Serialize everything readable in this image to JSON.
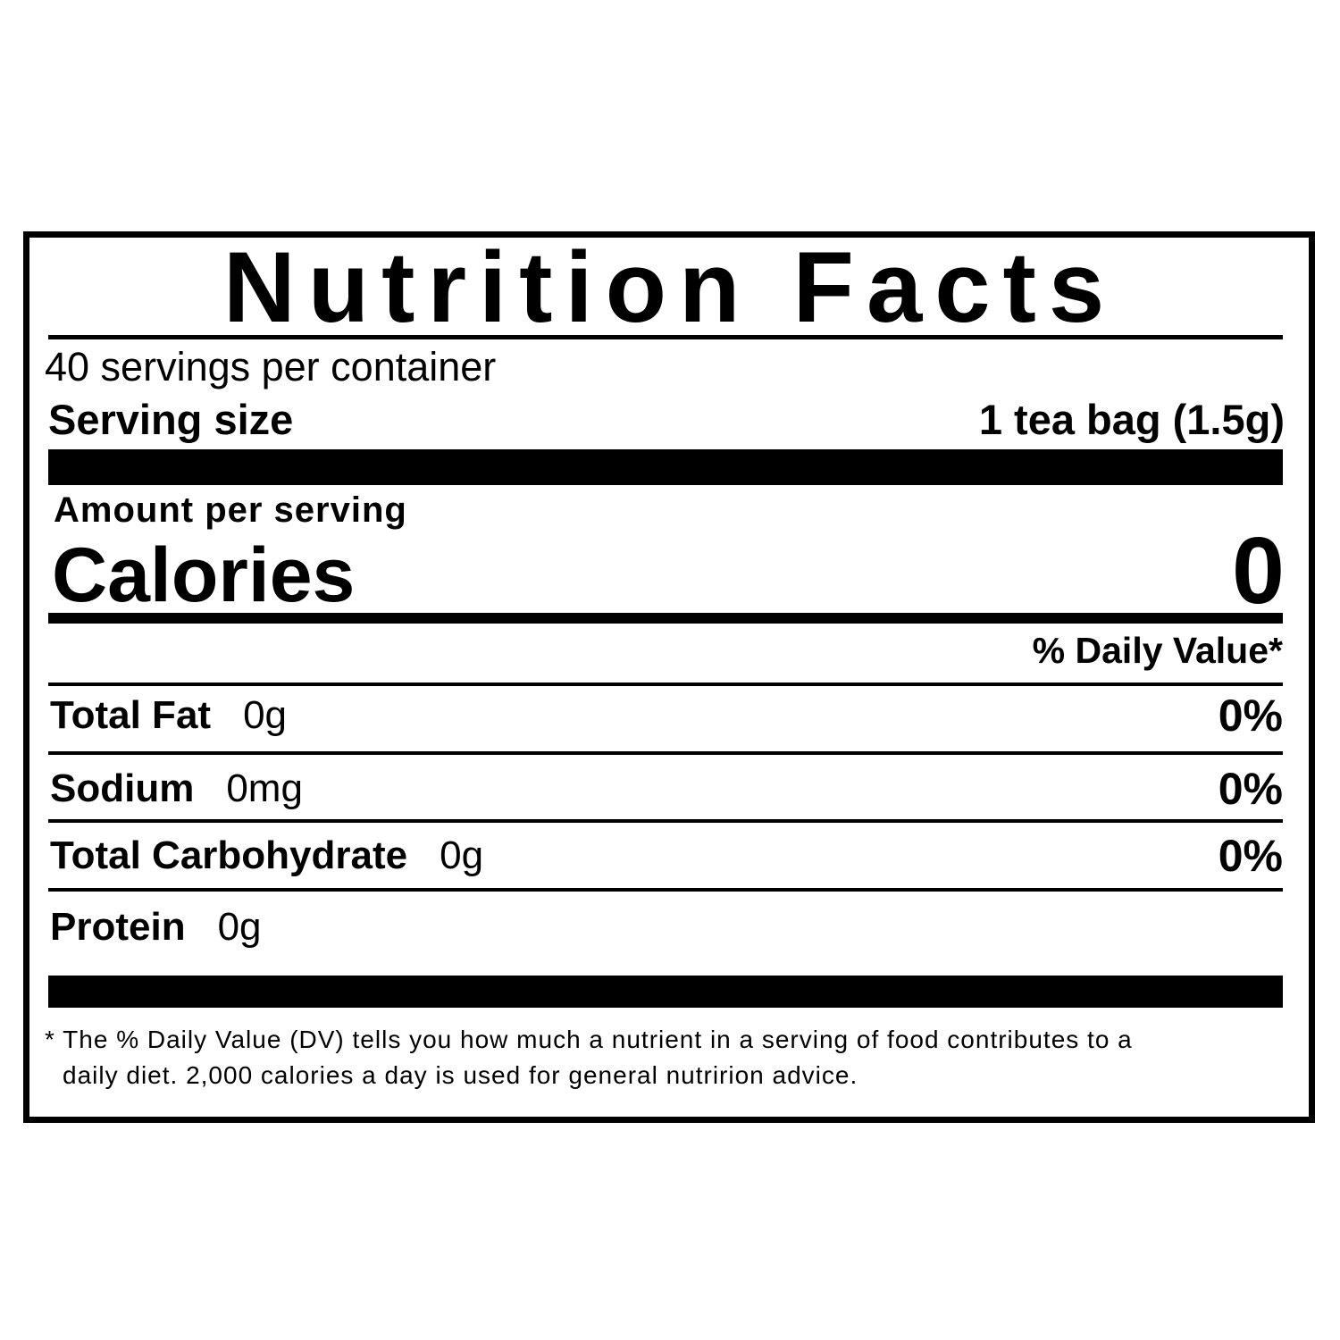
{
  "title": "Nutrition Facts",
  "servings_per_container": "40 servings per container",
  "serving_size": {
    "label": "Serving size",
    "value": "1 tea bag (1.5g)"
  },
  "amount_per_serving": "Amount per serving",
  "calories": {
    "label": "Calories",
    "value": "0"
  },
  "daily_value_header": "% Daily Value*",
  "nutrients": [
    {
      "name": "Total Fat",
      "amount": "0g",
      "dv": "0%"
    },
    {
      "name": "Sodium",
      "amount": "0mg",
      "dv": "0%"
    },
    {
      "name": "Total Carbohydrate",
      "amount": "0g",
      "dv": "0%"
    },
    {
      "name": "Protein",
      "amount": "0g",
      "dv": ""
    }
  ],
  "footnote": {
    "line1": "* The % Daily Value (DV) tells you how much a nutrient in a serving of food contributes to a",
    "line2": "daily diet. 2,000 calories a day is used for general nutririon advice."
  }
}
